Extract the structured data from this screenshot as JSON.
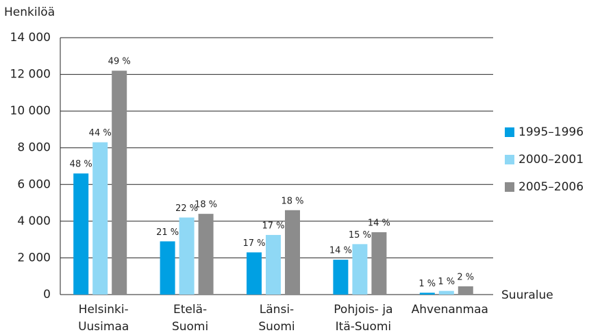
{
  "chart_data": {
    "type": "bar",
    "y_axis_label": "Henkilöä",
    "x_axis_label": "Suuralue",
    "categories": [
      [
        "Helsinki-",
        "Uusimaa"
      ],
      [
        "Etelä-",
        "Suomi"
      ],
      [
        "Länsi-",
        "Suomi"
      ],
      [
        "Pohjois- ja",
        "Itä-Suomi"
      ],
      [
        "Ahvenanmaa"
      ]
    ],
    "series": [
      {
        "name": "1995–1996",
        "color": "#00a0e3",
        "values": [
          6600,
          2900,
          2300,
          1900,
          100
        ],
        "labels": [
          "48 %",
          "21 %",
          "17 %",
          "14 %",
          "1 %"
        ]
      },
      {
        "name": "2000–2001",
        "color": "#8fd8f5",
        "values": [
          8300,
          4200,
          3250,
          2750,
          200
        ],
        "labels": [
          "44 %",
          "22 %",
          "17 %",
          "15 %",
          "1 %"
        ]
      },
      {
        "name": "2005–2006",
        "color": "#8c8c8c",
        "values": [
          12200,
          4400,
          4600,
          3400,
          450
        ],
        "labels": [
          "49 %",
          "18 %",
          "18 %",
          "14 %",
          "2 %"
        ]
      }
    ],
    "ylim": [
      0,
      14000
    ],
    "yticks": [
      0,
      {
        "value": 2000,
        "label": "2 000"
      },
      {
        "value": 4000,
        "label": "4 000"
      },
      {
        "value": 6000,
        "label": "6 000"
      },
      {
        "value": 8000,
        "label": "8 000"
      },
      {
        "value": 10000,
        "label": "10 000"
      },
      {
        "value": 12000,
        "label": "12 000"
      },
      {
        "value": 14000,
        "label": "14 000"
      }
    ],
    "grid": true,
    "legend": "right"
  }
}
